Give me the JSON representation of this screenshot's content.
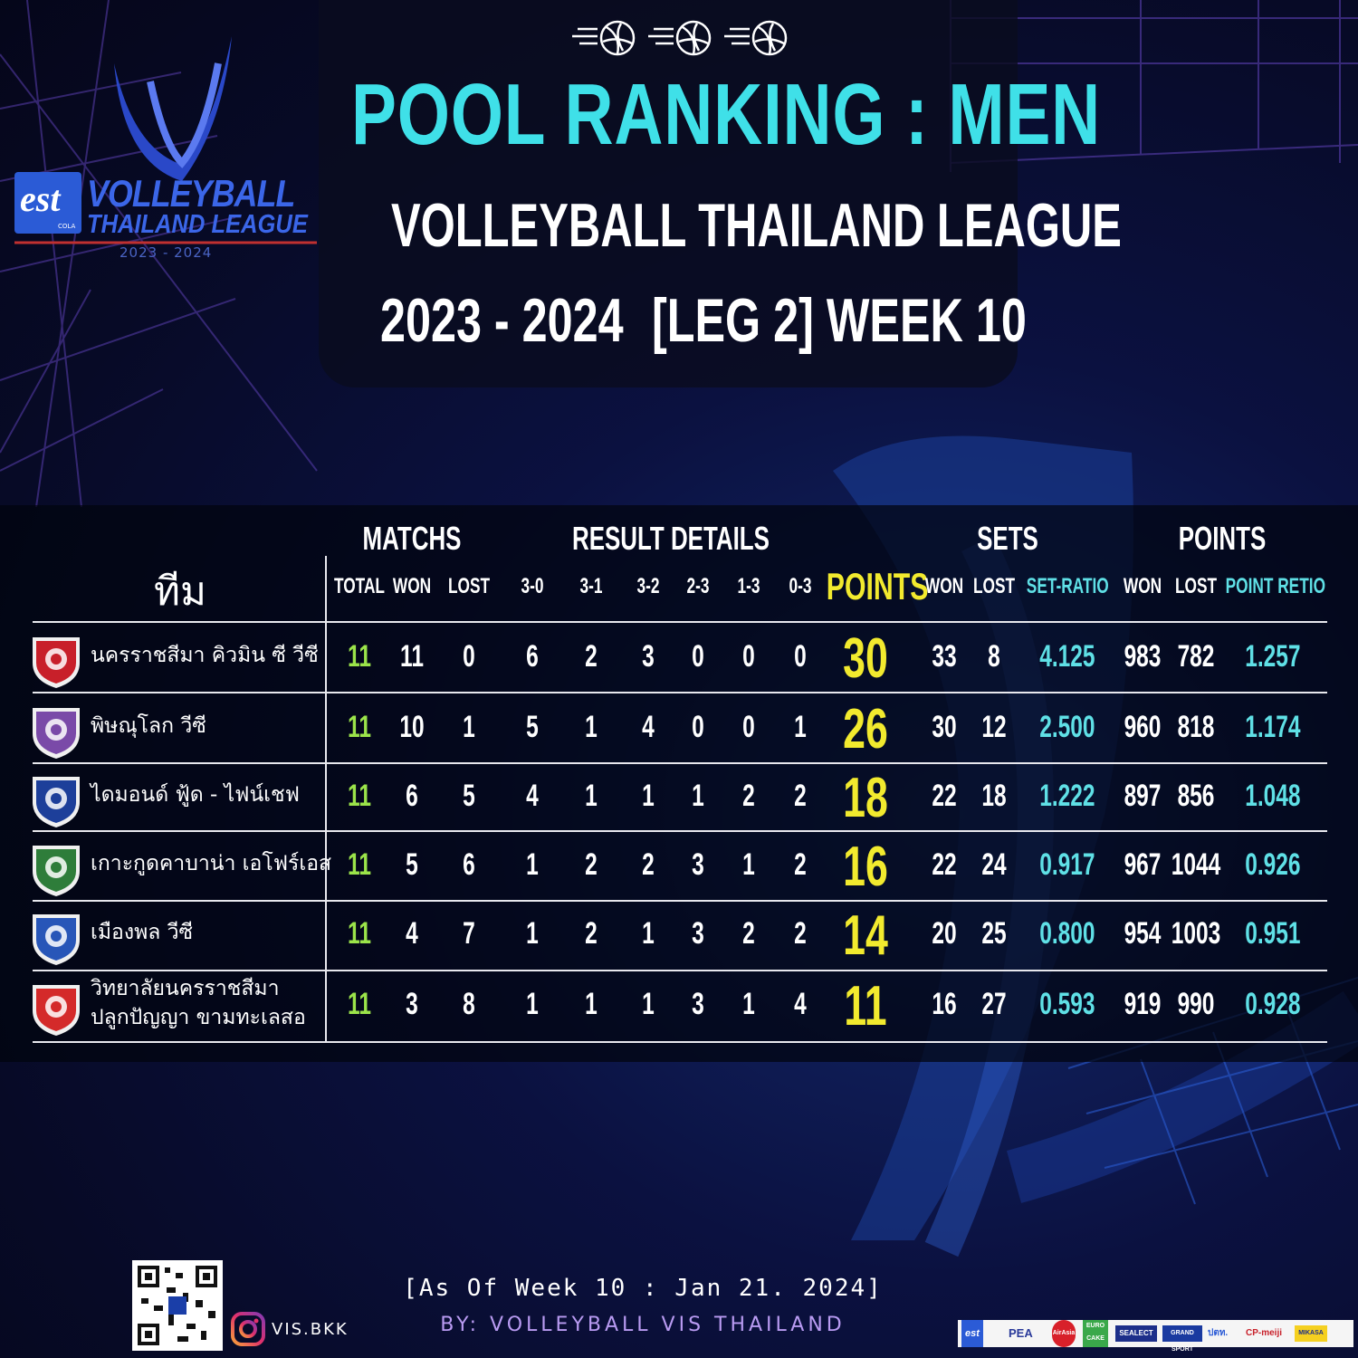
{
  "title": {
    "main": "POOL RANKING : MEN",
    "league": "VOLLEYBALL THAILAND LEAGUE",
    "season": "2023 - 2024",
    "week": "[LEG   2] WEEK 10"
  },
  "logo": {
    "brand": "est",
    "brand_sub": "COLA",
    "line1": "VOLLEYBALL",
    "line2": "THAILAND LEAGUE",
    "years": "2023 - 2024"
  },
  "headers": {
    "team": "ทีม",
    "matchs": "MATCHS",
    "result_details": "RESULT   DETAILS",
    "sets": "SETS",
    "points_group": "POINTS",
    "points": "POINTS",
    "total": "TOTAL",
    "won": "WON",
    "lost": "LOST",
    "r30": "3-0",
    "r31": "3-1",
    "r32": "3-2",
    "r23": "2-3",
    "r13": "1-3",
    "r03": "0-3",
    "sets_won": "WON",
    "sets_lost": "LOST",
    "set_ratio": "SET-RATIO",
    "pts_won": "WON",
    "pts_lost": "LOST",
    "point_ratio": "POINT RETIO"
  },
  "rows": [
    {
      "team": "นครราชสีมา คิวมิน ซี วีซี",
      "team2": "",
      "total": "11",
      "won": "11",
      "lost": "0",
      "r30": "6",
      "r31": "2",
      "r32": "3",
      "r23": "0",
      "r13": "0",
      "r03": "0",
      "points": "30",
      "sets_won": "33",
      "sets_lost": "8",
      "set_ratio": "4.125",
      "pts_won": "983",
      "pts_lost": "782",
      "point_ratio": "1.257",
      "crest_color": "#c8202a"
    },
    {
      "team": "พิษณุโลก วีซี",
      "team2": "",
      "total": "11",
      "won": "10",
      "lost": "1",
      "r30": "5",
      "r31": "1",
      "r32": "4",
      "r23": "0",
      "r13": "0",
      "r03": "1",
      "points": "26",
      "sets_won": "30",
      "sets_lost": "12",
      "set_ratio": "2.500",
      "pts_won": "960",
      "pts_lost": "818",
      "point_ratio": "1.174",
      "crest_color": "#7a4aa8"
    },
    {
      "team": "ไดมอนด์ ฟู้ด - ไฟน์เชฟ",
      "team2": "",
      "total": "11",
      "won": "6",
      "lost": "5",
      "r30": "4",
      "r31": "1",
      "r32": "1",
      "r23": "1",
      "r13": "2",
      "r03": "2",
      "points": "18",
      "sets_won": "22",
      "sets_lost": "18",
      "set_ratio": "1.222",
      "pts_won": "897",
      "pts_lost": "856",
      "point_ratio": "1.048",
      "crest_color": "#1d3f9a"
    },
    {
      "team": "เกาะกูดคาบาน่า เอโฟร์เอส",
      "team2": "",
      "total": "11",
      "won": "5",
      "lost": "6",
      "r30": "1",
      "r31": "2",
      "r32": "2",
      "r23": "3",
      "r13": "1",
      "r03": "2",
      "points": "16",
      "sets_won": "22",
      "sets_lost": "24",
      "set_ratio": "0.917",
      "pts_won": "967",
      "pts_lost": "1044",
      "point_ratio": "0.926",
      "crest_color": "#2e7d3a"
    },
    {
      "team": "เมืองพล วีซี",
      "team2": "",
      "total": "11",
      "won": "4",
      "lost": "7",
      "r30": "1",
      "r31": "2",
      "r32": "1",
      "r23": "3",
      "r13": "2",
      "r03": "2",
      "points": "14",
      "sets_won": "20",
      "sets_lost": "25",
      "set_ratio": "0.800",
      "pts_won": "954",
      "pts_lost": "1003",
      "point_ratio": "0.951",
      "crest_color": "#2856b8"
    },
    {
      "team": "วิทยาลัยนครราชสีมา",
      "team2": "ปลูกปัญญา ขามทะเลสอ",
      "total": "11",
      "won": "3",
      "lost": "8",
      "r30": "1",
      "r31": "1",
      "r32": "1",
      "r23": "3",
      "r13": "1",
      "r03": "4",
      "points": "11",
      "sets_won": "16",
      "sets_lost": "27",
      "set_ratio": "0.593",
      "pts_won": "919",
      "pts_lost": "990",
      "point_ratio": "0.928",
      "crest_color": "#d42a2a"
    }
  ],
  "footer": {
    "as_of": "[As Of Week 10 : Jan 21. 2024]",
    "by": "BY: VOLLEYBALL VIS THAILAND",
    "handle": "VIS.BKK"
  },
  "sponsors": [
    "est",
    "PEA",
    "AirAsia",
    "EURO CAKE",
    "SEALECT",
    "GRAND SPORT",
    "ปตท.",
    "CP-meiji",
    "MIKASA"
  ],
  "icons": [
    "volleyball-icon",
    "instagram-icon",
    "qr-code"
  ]
}
